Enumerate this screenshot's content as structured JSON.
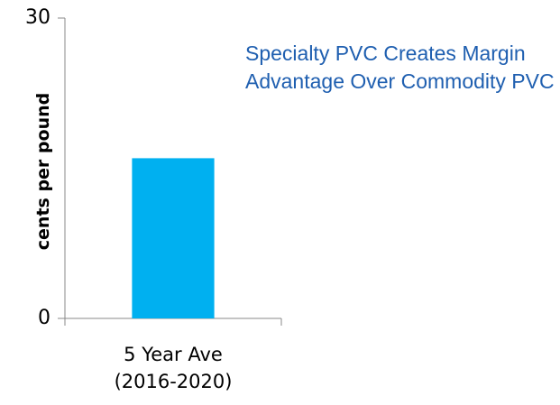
{
  "chart_data": {
    "type": "bar",
    "title": "Specialty PVC Creates Margin Advantage Over Commodity PVC",
    "y_label": "cents per pound",
    "categories": [
      "5 Year Ave (2016-2020)"
    ],
    "values": [
      16
    ],
    "color": "#00b0f0",
    "ylim": [
      0,
      30
    ],
    "yticks": [
      0,
      30
    ]
  }
}
